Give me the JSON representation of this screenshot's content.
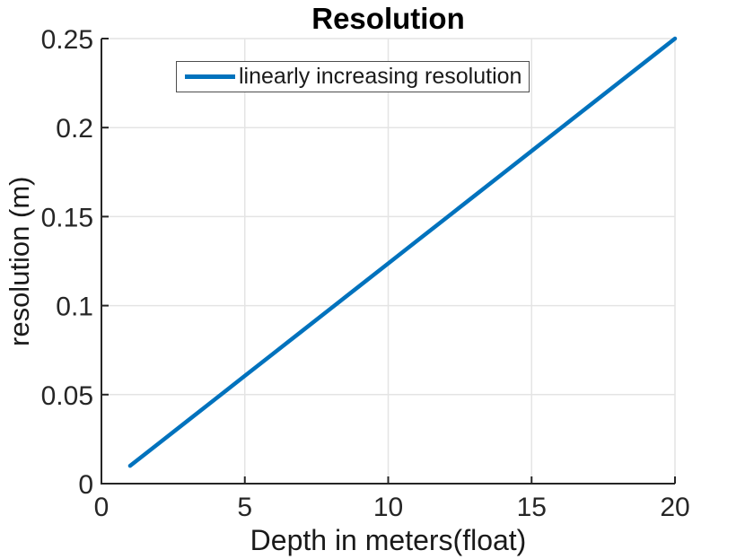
{
  "chart_data": {
    "type": "line",
    "title": "Resolution",
    "xlabel": "Depth in meters(float)",
    "ylabel": "resolution (m)",
    "xlim": [
      0,
      20
    ],
    "ylim": [
      0,
      0.25
    ],
    "xticks": [
      0,
      5,
      10,
      15,
      20
    ],
    "xtick_labels": [
      "0",
      "5",
      "10",
      "15",
      "20"
    ],
    "yticks": [
      0,
      0.05,
      0.1,
      0.15,
      0.2,
      0.25
    ],
    "ytick_labels": [
      "0",
      "0.05",
      "0.1",
      "0.15",
      "0.2",
      "0.25"
    ],
    "grid": true,
    "legend": {
      "position": "inside-top-left",
      "entries": [
        {
          "label": "linearly increasing resolution",
          "color": "#0072BD"
        }
      ]
    },
    "series": [
      {
        "name": "linearly increasing resolution",
        "color": "#0072BD",
        "x": [
          1,
          2,
          3,
          4,
          5,
          6,
          7,
          8,
          9,
          10,
          11,
          12,
          13,
          14,
          15,
          16,
          17,
          18,
          19,
          20
        ],
        "y": [
          0.01,
          0.02263,
          0.03526,
          0.04789,
          0.06053,
          0.07316,
          0.08579,
          0.09842,
          0.11105,
          0.12368,
          0.13632,
          0.14895,
          0.16158,
          0.17421,
          0.18684,
          0.19947,
          0.21211,
          0.22474,
          0.23737,
          0.25
        ]
      }
    ],
    "colors": {
      "line": "#0072BD",
      "axis": "#262626",
      "tick_label": "#262626",
      "grid": "#e4e4e4",
      "background": "#ffffff"
    }
  }
}
